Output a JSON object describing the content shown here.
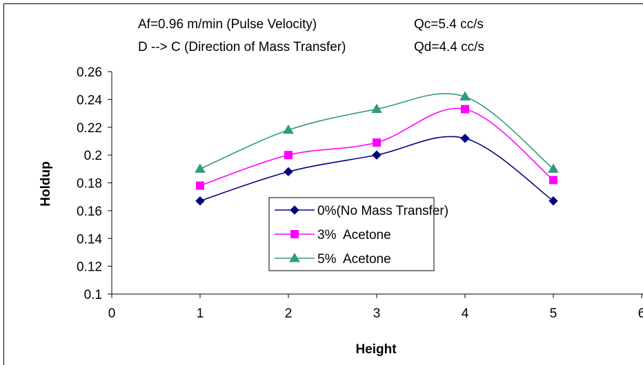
{
  "chart_data": {
    "type": "line",
    "xlabel": "Height",
    "ylabel": "Holdup",
    "xlim": [
      0,
      6
    ],
    "ylim": [
      0.1,
      0.26
    ],
    "x_ticks": [
      "0",
      "1",
      "2",
      "3",
      "4",
      "5",
      "6"
    ],
    "y_ticks": [
      "0.1",
      "0.12",
      "0.14",
      "0.16",
      "0.18",
      "0.2",
      "0.22",
      "0.24",
      "0.26"
    ],
    "grid": false,
    "legend_position": "center",
    "annotations": [
      "Af=0.96 m/min (Pulse Velocity)",
      "Qc=5.4 cc/s",
      "D --> C (Direction of Mass Transfer)",
      "Qd=4.4 cc/s"
    ],
    "x": [
      1,
      2,
      3,
      4,
      5
    ],
    "series": [
      {
        "name": "0%(No Mass Transfer)",
        "values": [
          0.167,
          0.188,
          0.2,
          0.212,
          0.167
        ],
        "color": "#000080",
        "marker": "diamond"
      },
      {
        "name": "3%  Acetone",
        "values": [
          0.178,
          0.2,
          0.209,
          0.233,
          0.182
        ],
        "color": "#FF00FF",
        "marker": "square"
      },
      {
        "name": "5%  Acetone",
        "values": [
          0.19,
          0.218,
          0.233,
          0.242,
          0.19
        ],
        "color": "#339980",
        "marker": "triangle"
      }
    ]
  }
}
